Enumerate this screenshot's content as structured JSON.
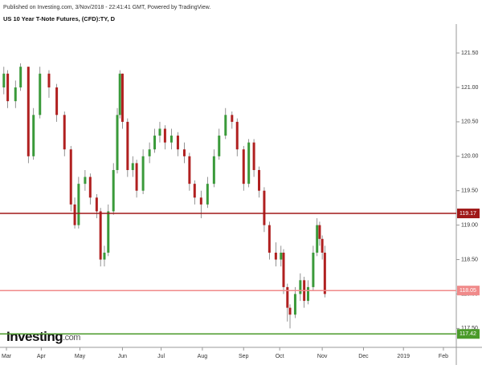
{
  "chart_data": {
    "type": "candlestick",
    "header": "Published on Investing.com, 3/Nov/2018 - 22:41:41 GMT, Powered by TradingView.",
    "title": "US 10 Year T-Note Futures, (CFD):TY, D",
    "logo": "Investing",
    "logo_suffix": ".com",
    "x": [
      1,
      4,
      10,
      14,
      20,
      24,
      29,
      36,
      42,
      48,
      53,
      56,
      59,
      64,
      68,
      73,
      76,
      79,
      82,
      86,
      89,
      91,
      93,
      97,
      101,
      104,
      109,
      114,
      118,
      122,
      126,
      131,
      136,
      141,
      145,
      149,
      154,
      159,
      164,
      168,
      173,
      178,
      182,
      187,
      191,
      195,
      199,
      203,
      207,
      212,
      216,
      218,
      221,
      223,
      227,
      231,
      234,
      237,
      241,
      244,
      246,
      248,
      250
    ],
    "open": [
      121.0,
      121.2,
      120.8,
      121.0,
      121.3,
      120.0,
      120.6,
      121.2,
      121.0,
      120.6,
      120.1,
      119.3,
      119.0,
      119.6,
      119.7,
      119.4,
      119.2,
      118.5,
      118.6,
      119.2,
      119.8,
      120.6,
      121.2,
      120.5,
      119.8,
      119.9,
      119.5,
      120.0,
      120.1,
      120.3,
      120.4,
      120.2,
      120.3,
      120.1,
      120.0,
      119.6,
      119.4,
      119.3,
      119.6,
      120.0,
      120.3,
      120.6,
      120.5,
      120.1,
      119.6,
      120.2,
      119.8,
      119.5,
      119.0,
      118.6,
      118.5,
      118.6,
      118.1,
      117.8,
      117.7,
      118.0,
      118.2,
      117.9,
      118.1,
      118.6,
      119.0,
      118.8,
      118.6
    ],
    "high": [
      121.3,
      121.25,
      121.1,
      121.35,
      121.3,
      120.7,
      121.3,
      121.25,
      121.05,
      120.65,
      120.15,
      119.4,
      119.7,
      119.8,
      119.75,
      119.45,
      119.25,
      118.7,
      119.3,
      119.9,
      120.7,
      121.25,
      121.2,
      120.55,
      120.0,
      119.95,
      120.1,
      120.2,
      120.4,
      120.5,
      120.45,
      120.4,
      120.35,
      120.2,
      120.05,
      119.65,
      119.5,
      119.7,
      120.1,
      120.4,
      120.7,
      120.65,
      120.55,
      120.15,
      120.25,
      120.25,
      119.85,
      119.55,
      119.05,
      118.75,
      118.7,
      118.65,
      118.15,
      117.85,
      118.1,
      118.3,
      118.25,
      118.2,
      118.7,
      119.1,
      119.05,
      118.85,
      118.7
    ],
    "low": [
      120.9,
      120.7,
      120.7,
      120.95,
      119.9,
      119.95,
      120.55,
      120.85,
      120.5,
      120.0,
      119.2,
      118.95,
      118.95,
      119.5,
      119.3,
      119.1,
      118.4,
      118.4,
      118.55,
      119.15,
      119.75,
      120.55,
      120.4,
      119.7,
      119.7,
      119.4,
      119.45,
      119.9,
      120.05,
      120.2,
      120.1,
      120.1,
      120.0,
      119.9,
      119.5,
      119.3,
      119.1,
      119.25,
      119.55,
      119.95,
      120.25,
      120.4,
      120.0,
      119.5,
      119.55,
      119.7,
      119.4,
      118.9,
      118.5,
      118.4,
      118.4,
      118.0,
      117.6,
      117.5,
      117.65,
      117.9,
      117.8,
      117.85,
      118.05,
      118.55,
      118.7,
      118.5,
      117.95
    ],
    "close": [
      121.2,
      120.8,
      121.0,
      121.3,
      120.0,
      120.6,
      121.2,
      121.0,
      120.6,
      120.1,
      119.3,
      119.0,
      119.6,
      119.7,
      119.4,
      119.2,
      118.5,
      118.6,
      119.2,
      119.8,
      120.6,
      121.2,
      120.5,
      119.8,
      119.9,
      119.5,
      120.0,
      120.1,
      120.3,
      120.4,
      120.2,
      120.3,
      120.1,
      120.0,
      119.6,
      119.4,
      119.3,
      119.6,
      120.0,
      120.3,
      120.6,
      120.5,
      120.1,
      119.6,
      120.2,
      119.8,
      119.5,
      119.0,
      118.6,
      118.5,
      118.6,
      118.1,
      117.8,
      117.7,
      118.0,
      118.2,
      117.9,
      118.1,
      118.6,
      119.0,
      118.8,
      118.6,
      118.0
    ],
    "up_color": "#3a9a3a",
    "down_color": "#b02020",
    "xlim": [
      -2,
      352
    ],
    "xticks": [
      {
        "value": 3,
        "label": "Mar"
      },
      {
        "value": 30,
        "label": "Apr"
      },
      {
        "value": 60,
        "label": "May"
      },
      {
        "value": 93,
        "label": "Jun"
      },
      {
        "value": 123,
        "label": "Jul"
      },
      {
        "value": 155,
        "label": "Aug"
      },
      {
        "value": 187,
        "label": "Sep"
      },
      {
        "value": 215,
        "label": "Oct"
      },
      {
        "value": 248,
        "label": "Nov"
      },
      {
        "value": 280,
        "label": "Dec"
      },
      {
        "value": 311,
        "label": "2019"
      },
      {
        "value": 342,
        "label": "Feb"
      }
    ],
    "ylim": [
      117.26,
      121.92
    ],
    "yticks": [
      {
        "value": 117.5,
        "label": "117.50"
      },
      {
        "value": 118,
        "label": "118.00"
      },
      {
        "value": 118.5,
        "label": "118.50"
      },
      {
        "value": 119,
        "label": "119.00"
      },
      {
        "value": 119.5,
        "label": "119.50"
      },
      {
        "value": 120,
        "label": "120.00"
      },
      {
        "value": 120.5,
        "label": "120.50"
      },
      {
        "value": 121,
        "label": "121.00"
      },
      {
        "value": 121.5,
        "label": "121.50"
      }
    ],
    "levels": [
      {
        "value": 119.17,
        "color": "#a01818"
      },
      {
        "value": 118.05,
        "color": "#f08a8a"
      },
      {
        "value": 117.42,
        "color": "#4a9a2a"
      }
    ],
    "grid": false
  }
}
